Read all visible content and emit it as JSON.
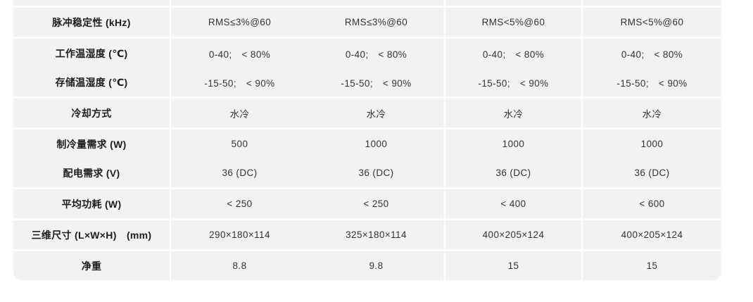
{
  "colors": {
    "page_background": "#ffffff",
    "row_background": "#f2f2f2",
    "separator": "#ffffff",
    "label_text": "#1c1c1c",
    "value_text": "#333333"
  },
  "table": {
    "description": "product-specification-comparison-table",
    "column_count": 5,
    "rows": [
      {
        "label": "脉冲稳定性 (kHz)",
        "values": [
          "RMS≤3%@60",
          "RMS≤3%@60",
          "RMS<5%@60",
          "RMS<5%@60"
        ],
        "separator_below": true
      },
      {
        "label": "工作温湿度 (℃)",
        "values": [
          "0-40;　< 80%",
          "0-40;　< 80%",
          "0-40;　< 80%",
          "0-40;　< 80%"
        ],
        "separator_below": false
      },
      {
        "label": "存储温湿度 (℃)",
        "values": [
          "-15-50;　< 90%",
          "-15-50;　< 90%",
          "-15-50;　< 90%",
          "-15-50;　< 90%"
        ],
        "separator_below": true
      },
      {
        "label": "冷却方式",
        "values": [
          "水冷",
          "水冷",
          "水冷",
          "水冷"
        ],
        "separator_below": true
      },
      {
        "label": "制冷量需求 (W)",
        "values": [
          "500",
          "1000",
          "1000",
          "1000"
        ],
        "separator_below": false
      },
      {
        "label": "配电需求 (V)",
        "values": [
          "36 (DC)",
          "36 (DC)",
          "36 (DC)",
          "36 (DC)"
        ],
        "separator_below": true
      },
      {
        "label": "平均功耗 (W)",
        "values": [
          "< 250",
          "< 250",
          "< 400",
          "< 600"
        ],
        "separator_below": true
      },
      {
        "label": "三维尺寸 (L×W×H)　(mm)",
        "values": [
          "290×180×114",
          "325×180×114",
          "400×205×124",
          "400×205×124"
        ],
        "separator_below": true
      },
      {
        "label": "净重",
        "values": [
          "8.8",
          "9.8",
          "15",
          "15"
        ],
        "separator_below": false
      }
    ]
  }
}
